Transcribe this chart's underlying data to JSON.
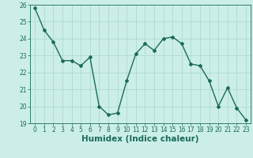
{
  "x": [
    0,
    1,
    2,
    3,
    4,
    5,
    6,
    7,
    8,
    9,
    10,
    11,
    12,
    13,
    14,
    15,
    16,
    17,
    18,
    19,
    20,
    21,
    22,
    23
  ],
  "y": [
    25.8,
    24.5,
    23.8,
    22.7,
    22.7,
    22.4,
    22.9,
    20.0,
    19.5,
    19.6,
    21.5,
    23.1,
    23.7,
    23.3,
    24.0,
    24.1,
    23.7,
    22.5,
    22.4,
    21.5,
    20.0,
    21.1,
    19.9,
    19.2
  ],
  "line_color": "#1a6b5a",
  "marker": "D",
  "marker_size": 2,
  "bg_color": "#cceee8",
  "grid_color": "#aad4ce",
  "axis_color": "#1a6b5a",
  "xlabel": "Humidex (Indice chaleur)",
  "ylabel": "",
  "xlim": [
    -0.5,
    23.5
  ],
  "ylim": [
    19,
    26
  ],
  "yticks": [
    19,
    20,
    21,
    22,
    23,
    24,
    25,
    26
  ],
  "xticks": [
    0,
    1,
    2,
    3,
    4,
    5,
    6,
    7,
    8,
    9,
    10,
    11,
    12,
    13,
    14,
    15,
    16,
    17,
    18,
    19,
    20,
    21,
    22,
    23
  ],
  "tick_fontsize": 5.5,
  "xlabel_fontsize": 7.5,
  "line_width": 1.0
}
